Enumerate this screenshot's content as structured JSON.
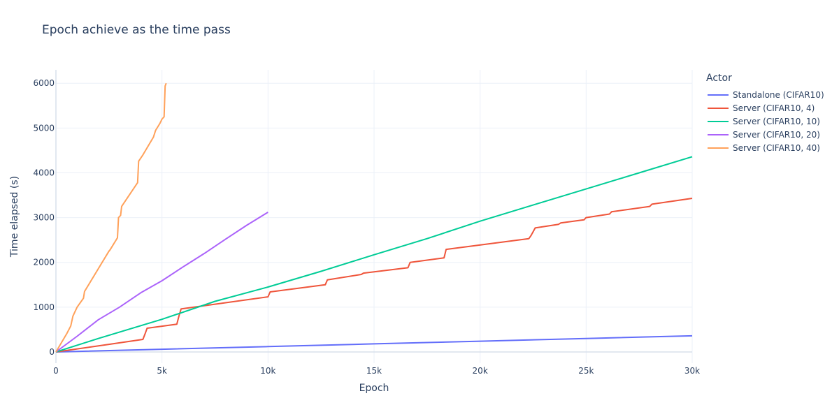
{
  "chart_data": {
    "type": "line",
    "title": "Epoch achieve as the time pass",
    "xlabel": "Epoch",
    "ylabel": "Time elapsed (s)",
    "xlim": [
      0,
      30000
    ],
    "ylim": [
      -250,
      6300
    ],
    "x_ticks": [
      0,
      5000,
      10000,
      15000,
      20000,
      25000,
      30000
    ],
    "x_tick_labels": [
      "0",
      "5k",
      "10k",
      "15k",
      "20k",
      "25k",
      "30k"
    ],
    "y_ticks": [
      0,
      1000,
      2000,
      3000,
      4000,
      5000,
      6000
    ],
    "y_tick_labels": [
      "0",
      "1000",
      "2000",
      "3000",
      "4000",
      "5000",
      "6000"
    ],
    "grid": true,
    "legend_title": "Actor",
    "legend_position": "right",
    "series": [
      {
        "name": "Standalone (CIFAR10)",
        "color": "#636efa",
        "x": [
          0,
          5000,
          10000,
          15000,
          20000,
          25000,
          30000
        ],
        "y": [
          0,
          60,
          120,
          180,
          240,
          300,
          360
        ]
      },
      {
        "name": "Server (CIFAR10, 4)",
        "color": "#ef553b",
        "x": [
          0,
          2500,
          4100,
          4200,
          4300,
          5700,
          5800,
          5900,
          10000,
          10100,
          12700,
          12800,
          14400,
          14500,
          16600,
          16700,
          18300,
          18400,
          22300,
          22400,
          22600,
          23700,
          23800,
          24900,
          25000,
          26100,
          26200,
          28000,
          28100,
          30000
        ],
        "y": [
          0,
          170,
          280,
          400,
          530,
          620,
          800,
          960,
          1230,
          1340,
          1500,
          1610,
          1730,
          1760,
          1880,
          2000,
          2100,
          2290,
          2530,
          2600,
          2770,
          2850,
          2880,
          2950,
          3000,
          3080,
          3130,
          3250,
          3300,
          3430
        ]
      },
      {
        "name": "Server (CIFAR10, 10)",
        "color": "#00cc96",
        "x": [
          0,
          2000,
          5000,
          7500,
          10000,
          12500,
          15000,
          17500,
          20000,
          22500,
          25000,
          27500,
          30000
        ],
        "y": [
          0,
          300,
          730,
          1130,
          1450,
          1800,
          2170,
          2530,
          2920,
          3280,
          3640,
          4000,
          4360
        ]
      },
      {
        "name": "Server (CIFAR10, 20)",
        "color": "#ab63fa",
        "x": [
          0,
          1000,
          2000,
          3000,
          4000,
          5000,
          6000,
          7000,
          8000,
          9000,
          10000
        ],
        "y": [
          0,
          350,
          720,
          1000,
          1320,
          1590,
          1900,
          2200,
          2520,
          2830,
          3120
        ]
      },
      {
        "name": "Server (CIFAR10, 40)",
        "color": "#ffa15a",
        "x": [
          0,
          500,
          700,
          800,
          1000,
          1300,
          1350,
          2500,
          2550,
          2900,
          2950,
          3050,
          3100,
          3850,
          3900,
          4100,
          4600,
          4700,
          4900,
          5000,
          5100,
          5150,
          5200
        ],
        "y": [
          0,
          400,
          580,
          800,
          1000,
          1200,
          1350,
          2250,
          2280,
          2550,
          3000,
          3050,
          3250,
          3780,
          4260,
          4400,
          4800,
          4950,
          5100,
          5200,
          5250,
          5940,
          6000
        ]
      }
    ]
  }
}
